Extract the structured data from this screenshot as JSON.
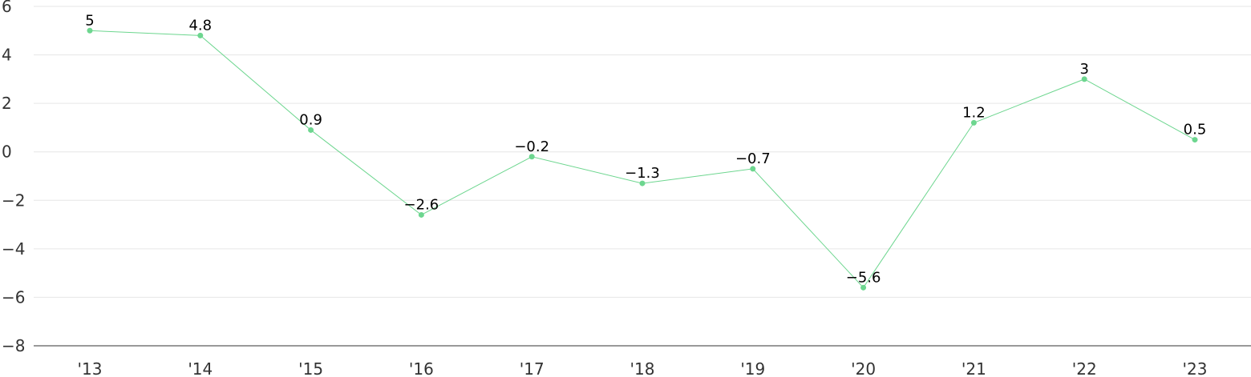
{
  "chart_data": {
    "type": "line",
    "title": "",
    "xlabel": "",
    "ylabel": "",
    "categories": [
      "'13",
      "'14",
      "'15",
      "'16",
      "'17",
      "'18",
      "'19",
      "'20",
      "'21",
      "'22",
      "'23"
    ],
    "series": [
      {
        "values": [
          5,
          4.8,
          0.9,
          -2.6,
          -0.2,
          -1.3,
          -0.7,
          -5.6,
          1.2,
          3,
          0.5
        ],
        "value_labels": [
          "5",
          "4.8",
          "0.9",
          "−2.6",
          "−0.2",
          "−1.3",
          "−0.7",
          "−5.6",
          "1.2",
          "3",
          "0.5"
        ],
        "color": "#6dd68f"
      }
    ],
    "ylim": [
      -8,
      6
    ],
    "yticks": [
      6,
      4,
      2,
      0,
      -2,
      -4,
      -6,
      -8
    ],
    "ytick_labels": [
      "6",
      "4",
      "2",
      "0",
      "−2",
      "−4",
      "−6",
      "−8"
    ],
    "grid": true,
    "legend": "none"
  }
}
